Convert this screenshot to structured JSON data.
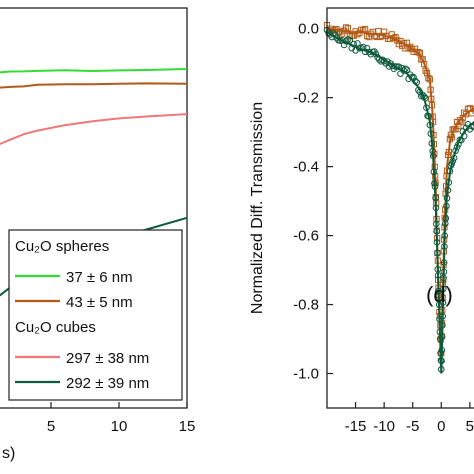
{
  "chart_data": [
    {
      "type": "line",
      "panel": "left",
      "x_tick_labels": [
        "5",
        "10",
        "15"
      ],
      "x_ticks": [
        5,
        10,
        15
      ],
      "x_title_fragment": "s)",
      "xlim": [
        0,
        15
      ],
      "ylim": [
        -1.0,
        0.05
      ],
      "series": [
        {
          "name": "37 ± 6 nm",
          "color": "#33dd33",
          "x": [
            0,
            1,
            2,
            3,
            4,
            6,
            8,
            10,
            12,
            15
          ],
          "y": [
            -0.12,
            -0.118,
            -0.117,
            -0.116,
            -0.115,
            -0.114,
            -0.114,
            -0.113,
            -0.113,
            -0.112
          ]
        },
        {
          "name": "43 ± 5 nm",
          "color": "#b35a17",
          "x": [
            0,
            1,
            2,
            3,
            4,
            6,
            8,
            10,
            12,
            15
          ],
          "y": [
            -0.165,
            -0.16,
            -0.157,
            -0.155,
            -0.153,
            -0.151,
            -0.15,
            -0.149,
            -0.148,
            -0.147
          ]
        },
        {
          "name": "297 ± 38 nm",
          "color": "#f07878",
          "x": [
            0,
            1,
            2,
            3,
            4,
            6,
            8,
            10,
            12,
            15
          ],
          "y": [
            -0.33,
            -0.31,
            -0.295,
            -0.283,
            -0.272,
            -0.258,
            -0.248,
            -0.24,
            -0.235,
            -0.228
          ]
        },
        {
          "name": "292 ± 39 nm",
          "color": "#0e5a3c",
          "x": [
            0,
            1,
            2,
            3,
            4,
            6,
            8,
            10,
            12,
            15
          ],
          "y": [
            -0.735,
            -0.71,
            -0.685,
            -0.662,
            -0.642,
            -0.607,
            -0.578,
            -0.552,
            -0.53,
            -0.5
          ]
        }
      ],
      "legend": {
        "group1_title": "Cu₂O spheres",
        "group2_title": "Cu₂O cubes",
        "entries": [
          "37 ± 6 nm",
          "43 ± 5 nm",
          "297 ± 38 nm",
          "292 ± 39 nm"
        ],
        "placement": "bottom-right"
      }
    },
    {
      "type": "scatter",
      "panel": "right",
      "ylabel": "Normalized Diff. Transmission",
      "annotation": "(d)",
      "xlim": [
        -20,
        8
      ],
      "ylim": [
        -1.1,
        0.06
      ],
      "x_ticks": [
        -15,
        -10,
        -5,
        0,
        5
      ],
      "x_tick_labels": [
        "-15",
        "-10",
        "-5",
        "0",
        "5"
      ],
      "y_ticks": [
        0.0,
        -0.2,
        -0.4,
        -0.6,
        -0.8,
        -1.0
      ],
      "y_tick_labels": [
        "0.0",
        "-0.2",
        "-0.4",
        "-0.6",
        "-0.8",
        "-1.0"
      ],
      "series": [
        {
          "color": "#b35a17",
          "marker": "square",
          "x": [
            -20,
            -18,
            -16,
            -14,
            -12,
            -10,
            -8,
            -6,
            -4,
            -3,
            -2,
            -1.5,
            -1,
            -0.5,
            0,
            0.3,
            0.6,
            1,
            1.5,
            2,
            3,
            4,
            5,
            6,
            7,
            8
          ],
          "y": [
            0.0,
            -0.005,
            -0.01,
            -0.01,
            -0.015,
            -0.02,
            -0.03,
            -0.05,
            -0.07,
            -0.1,
            -0.15,
            -0.25,
            -0.45,
            -0.75,
            -0.93,
            -0.75,
            -0.55,
            -0.4,
            -0.33,
            -0.3,
            -0.27,
            -0.25,
            -0.24,
            -0.23,
            -0.22,
            -0.21
          ]
        },
        {
          "color": "#0e5a3c",
          "marker": "circle",
          "x": [
            -20,
            -18,
            -16,
            -14,
            -12,
            -10,
            -8,
            -6,
            -4,
            -3,
            -2,
            -1.5,
            -1,
            -0.5,
            0,
            0.3,
            0.6,
            1,
            1.5,
            2,
            3,
            4,
            5,
            6,
            7,
            8
          ],
          "y": [
            -0.01,
            -0.03,
            -0.045,
            -0.06,
            -0.07,
            -0.09,
            -0.11,
            -0.13,
            -0.17,
            -0.2,
            -0.27,
            -0.35,
            -0.5,
            -0.75,
            -1.0,
            -0.8,
            -0.6,
            -0.48,
            -0.42,
            -0.38,
            -0.33,
            -0.3,
            -0.28,
            -0.27,
            -0.26,
            -0.25
          ]
        }
      ]
    }
  ]
}
